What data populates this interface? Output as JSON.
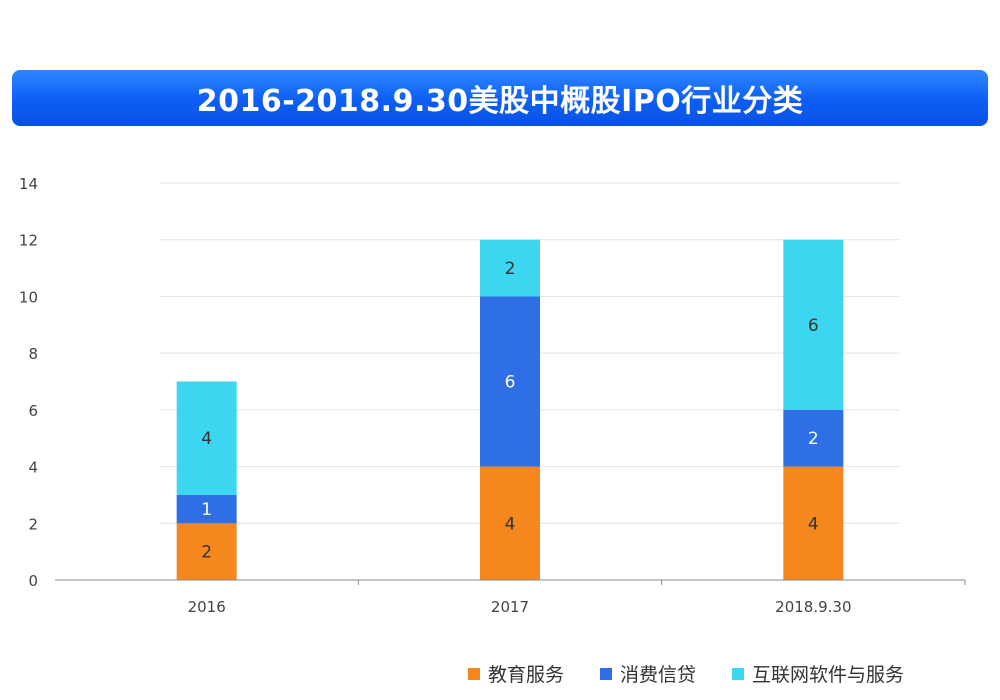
{
  "chart_data": {
    "type": "bar",
    "stacked": true,
    "title": "2016-2018.9.30美股中概股IPO行业分类",
    "categories": [
      "2016",
      "2017",
      "2018.9.30"
    ],
    "series": [
      {
        "name": "教育服务",
        "values": [
          2,
          4,
          4
        ],
        "color": "#f5871f"
      },
      {
        "name": "消费信贷",
        "values": [
          1,
          6,
          2
        ],
        "color": "#2e6fe6"
      },
      {
        "name": "互联网软件与服务",
        "values": [
          4,
          2,
          6
        ],
        "color": "#3cd6f0"
      }
    ],
    "ylim": [
      0,
      14
    ],
    "yticks": [
      0,
      2,
      4,
      6,
      8,
      10,
      12,
      14
    ],
    "xlabel": "",
    "ylabel": "",
    "grid": true,
    "legend_position": "bottom"
  }
}
